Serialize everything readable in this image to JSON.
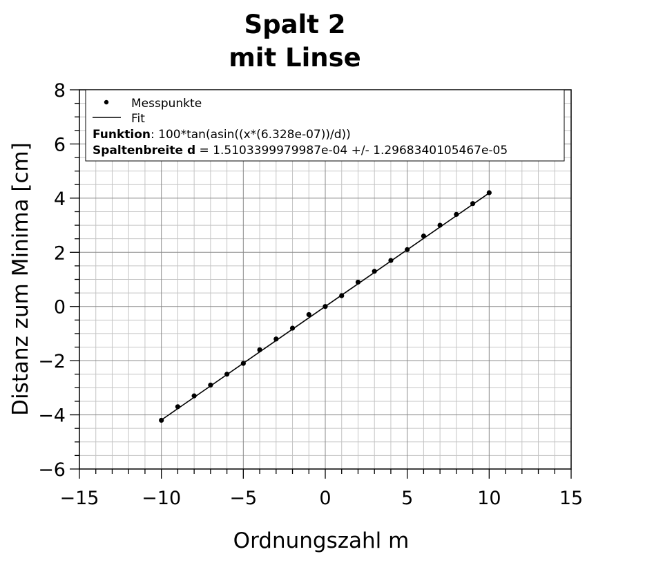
{
  "chart_data": {
    "type": "scatter",
    "title": [
      "Spalt 2",
      "mit Linse"
    ],
    "xlabel": "Ordnungszahl m",
    "ylabel": "Distanz zum Minima [cm]",
    "xlim": [
      -15,
      15
    ],
    "ylim": [
      -6,
      8
    ],
    "xticks": [
      -15,
      -10,
      -5,
      0,
      5,
      10,
      15
    ],
    "xtick_labels": [
      "−15",
      "−10",
      "−5",
      "0",
      "5",
      "10",
      "15"
    ],
    "yticks": [
      -6,
      -4,
      -2,
      0,
      2,
      4,
      6,
      8
    ],
    "ytick_labels": [
      "−6",
      "−4",
      "−2",
      "0",
      "2",
      "4",
      "6",
      "8"
    ],
    "grid": true,
    "legend_position": "top-left",
    "series": [
      {
        "name": "Messpunkte",
        "kind": "points",
        "x": [
          -10,
          -9,
          -8,
          -7,
          -6,
          -5,
          -4,
          -3,
          -2,
          -1,
          0,
          1,
          2,
          3,
          4,
          5,
          6,
          7,
          8,
          9,
          10
        ],
        "y": [
          -4.2,
          -3.7,
          -3.3,
          -2.9,
          -2.5,
          -2.1,
          -1.6,
          -1.2,
          -0.8,
          -0.3,
          0.0,
          0.4,
          0.9,
          1.3,
          1.7,
          2.1,
          2.6,
          3.0,
          3.4,
          3.8,
          4.2
        ]
      },
      {
        "name": "Fit",
        "kind": "line",
        "x": [
          -10,
          10
        ],
        "y": [
          -4.19,
          4.19
        ]
      }
    ],
    "legend_info": {
      "function_label": "Funktion",
      "function_text": ": 100*tan(asin((x*(6.328e-07))/d))",
      "width_label": "Spaltenbreite d",
      "width_text": " = 1.5103399979987e-04 +/- 1.2968340105467e-05"
    }
  }
}
